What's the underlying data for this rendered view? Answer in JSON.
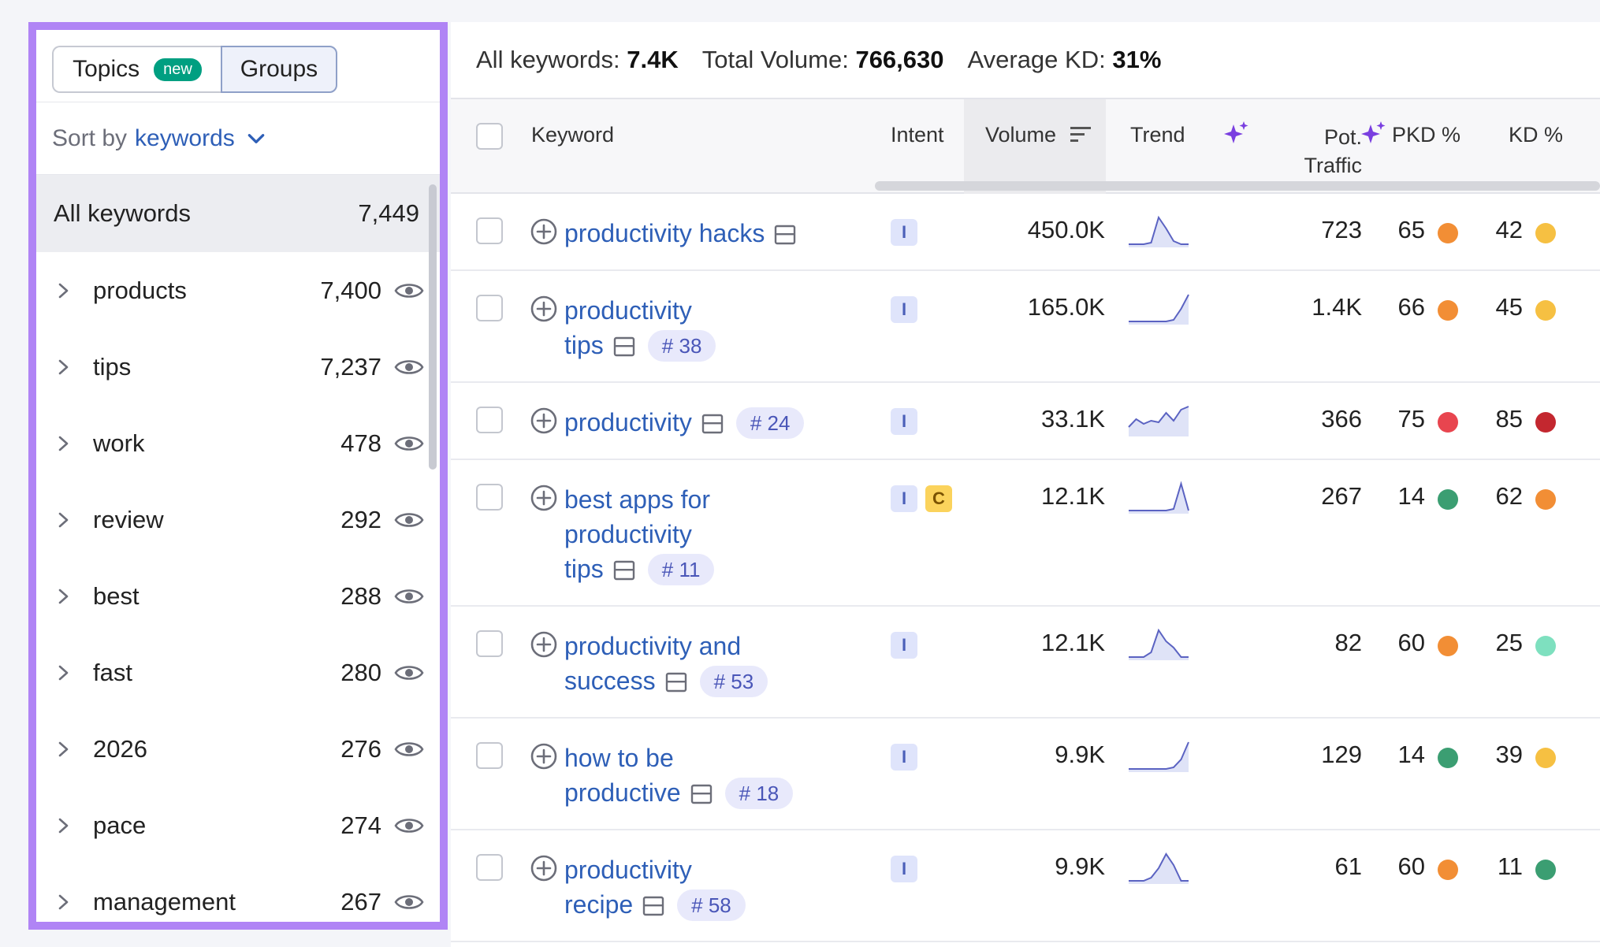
{
  "sidebar": {
    "tabs": {
      "topics": "Topics",
      "new_badge": "new",
      "groups": "Groups"
    },
    "sort": {
      "prefix": "Sort by",
      "value": "keywords"
    },
    "all": {
      "label": "All keywords",
      "count": "7,449"
    },
    "groups": [
      {
        "label": "products",
        "count": "7,400"
      },
      {
        "label": "tips",
        "count": "7,237"
      },
      {
        "label": "work",
        "count": "478"
      },
      {
        "label": "review",
        "count": "292"
      },
      {
        "label": "best",
        "count": "288"
      },
      {
        "label": "fast",
        "count": "280"
      },
      {
        "label": "2026",
        "count": "276"
      },
      {
        "label": "pace",
        "count": "274"
      },
      {
        "label": "management",
        "count": "267"
      }
    ]
  },
  "summary": {
    "all_label": "All keywords:",
    "all_value": "7.4K",
    "vol_label": "Total Volume:",
    "vol_value": "766,630",
    "kd_label": "Average KD:",
    "kd_value": "31%"
  },
  "table": {
    "headers": {
      "keyword": "Keyword",
      "intent": "Intent",
      "volume": "Volume",
      "trend": "Trend",
      "pot1": "Pot.",
      "pot2": "Traffic",
      "pkd": "PKD %",
      "kd": "KD %"
    },
    "colors": {
      "orange": "#f28e35",
      "yellow": "#f6c042",
      "red": "#e8454f",
      "darkred": "#c3272f",
      "green": "#3b9e72",
      "mint": "#7ee0bf"
    },
    "rows": [
      {
        "lines": [
          "productivity hacks"
        ],
        "badge": "",
        "intents": [
          "I"
        ],
        "volume": "450.0K",
        "trend": [
          0.1,
          0.1,
          0.1,
          0.15,
          0.95,
          0.6,
          0.2,
          0.1,
          0.1
        ],
        "traffic": "723",
        "pkd": "65",
        "pkd_color": "#f28e35",
        "kd": "42",
        "kd_color": "#f6c042"
      },
      {
        "lines": [
          "productivity",
          "tips"
        ],
        "badge": "# 38",
        "intents": [
          "I"
        ],
        "volume": "165.0K",
        "trend": [
          0.1,
          0.1,
          0.1,
          0.1,
          0.1,
          0.1,
          0.15,
          0.5,
          0.95
        ],
        "traffic": "1.4K",
        "pkd": "66",
        "pkd_color": "#f28e35",
        "kd": "45",
        "kd_color": "#f6c042"
      },
      {
        "lines": [
          "productivity"
        ],
        "badge": "# 24",
        "intents": [
          "I"
        ],
        "volume": "33.1K",
        "trend": [
          0.3,
          0.55,
          0.4,
          0.5,
          0.45,
          0.75,
          0.5,
          0.85,
          0.95
        ],
        "traffic": "366",
        "pkd": "75",
        "pkd_color": "#e8454f",
        "kd": "85",
        "kd_color": "#c3272f"
      },
      {
        "lines": [
          "best apps for",
          "productivity",
          "tips"
        ],
        "badge": "# 11",
        "intents": [
          "I",
          "C"
        ],
        "volume": "12.1K",
        "trend": [
          0.1,
          0.1,
          0.1,
          0.1,
          0.1,
          0.1,
          0.15,
          0.95,
          0.1
        ],
        "traffic": "267",
        "pkd": "14",
        "pkd_color": "#3b9e72",
        "kd": "62",
        "kd_color": "#f28e35"
      },
      {
        "lines": [
          "productivity and",
          "success"
        ],
        "badge": "# 53",
        "intents": [
          "I"
        ],
        "volume": "12.1K",
        "trend": [
          0.1,
          0.1,
          0.1,
          0.25,
          0.95,
          0.6,
          0.4,
          0.1,
          0.1
        ],
        "traffic": "82",
        "pkd": "60",
        "pkd_color": "#f28e35",
        "kd": "25",
        "kd_color": "#7ee0bf"
      },
      {
        "lines": [
          "how to be",
          "productive"
        ],
        "badge": "# 18",
        "intents": [
          "I"
        ],
        "volume": "9.9K",
        "trend": [
          0.1,
          0.1,
          0.1,
          0.1,
          0.1,
          0.1,
          0.15,
          0.4,
          0.95
        ],
        "traffic": "129",
        "pkd": "14",
        "pkd_color": "#3b9e72",
        "kd": "39",
        "kd_color": "#f6c042"
      },
      {
        "lines": [
          "productivity",
          "recipe"
        ],
        "badge": "# 58",
        "intents": [
          "I"
        ],
        "volume": "9.9K",
        "trend": [
          0.1,
          0.1,
          0.1,
          0.2,
          0.5,
          0.95,
          0.6,
          0.1,
          0.1
        ],
        "traffic": "61",
        "pkd": "60",
        "pkd_color": "#f28e35",
        "kd": "11",
        "kd_color": "#3b9e72"
      }
    ]
  }
}
